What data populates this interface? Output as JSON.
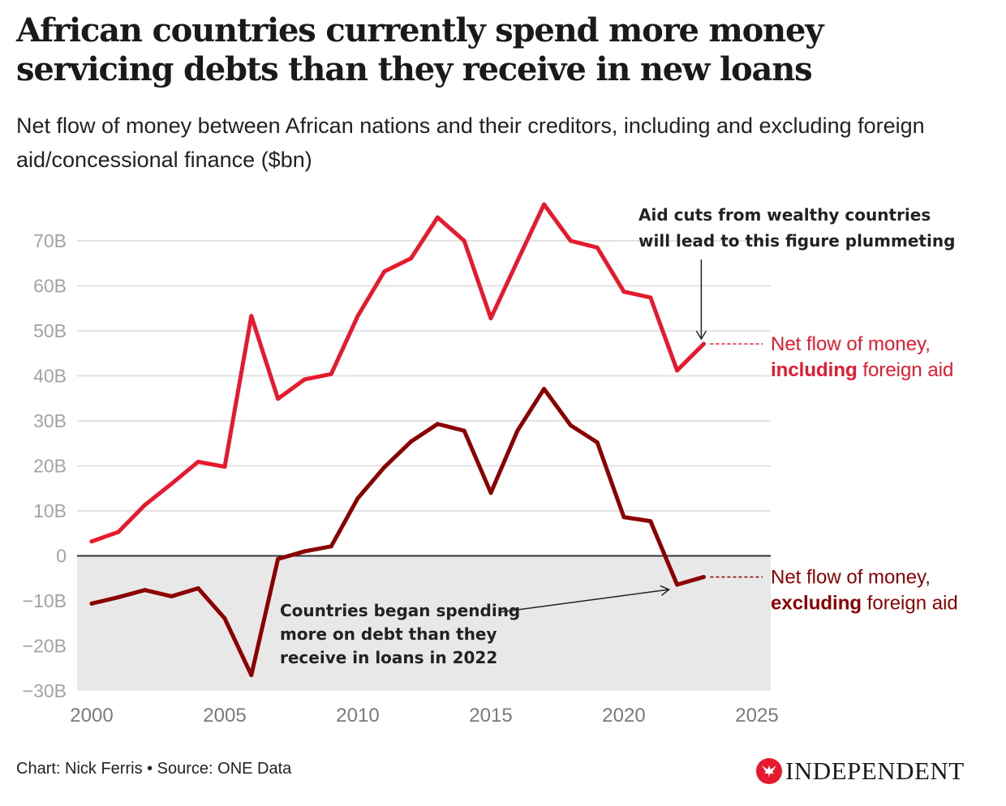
{
  "title": "African countries currently spend more money servicing debts than they receive in new loans",
  "subtitle": "Net flow of money between African nations and their creditors, including and excluding foreign aid/concessional finance ($bn)",
  "footer": {
    "credit": "Chart: Nick Ferris • Source: ONE Data",
    "brand": "INDEPENDENT",
    "brand_color": "#e8192c"
  },
  "chart_data": {
    "type": "line",
    "title": "African countries currently spend more money servicing debts than they receive in new loans",
    "subtitle": "Net flow of money between African nations and their creditors, including and excluding foreign aid/concessional finance ($bn)",
    "xlabel": "",
    "ylabel": "",
    "x": [
      2000,
      2001,
      2002,
      2003,
      2004,
      2005,
      2006,
      2007,
      2008,
      2009,
      2010,
      2011,
      2012,
      2013,
      2014,
      2015,
      2016,
      2017,
      2018,
      2019,
      2020,
      2021,
      2022,
      2023
    ],
    "xlim": [
      2000,
      2025
    ],
    "ylim": [
      -30,
      70
    ],
    "xticks": [
      2000,
      2005,
      2010,
      2015,
      2020,
      2025
    ],
    "xtick_labels": [
      "2000",
      "2005",
      "2010",
      "2015",
      "2020",
      "2025"
    ],
    "yticks": [
      -30,
      -20,
      -10,
      0,
      10,
      20,
      30,
      40,
      50,
      60,
      70
    ],
    "ytick_labels": [
      "−30B",
      "−20B",
      "−10B",
      "0",
      "10B",
      "20B",
      "30B",
      "40B",
      "50B",
      "60B",
      "70B"
    ],
    "grid": true,
    "negative_region_shaded": true,
    "series": [
      {
        "name": "Net flow of money, including foreign aid",
        "label_prefix": "Net flow of money,",
        "label_bold": "including",
        "label_suffix": " foreign aid",
        "color": "#e8192c",
        "values": [
          3.2,
          5.3,
          11.3,
          16.0,
          20.9,
          19.8,
          53.3,
          34.9,
          39.2,
          40.4,
          53.3,
          63.2,
          66.1,
          75.2,
          70.0,
          52.8,
          65.5,
          78.1,
          70.0,
          68.5,
          58.7,
          57.4,
          41.2,
          47.1
        ]
      },
      {
        "name": "Net flow of money, excluding foreign aid",
        "label_prefix": "Net flow of money,",
        "label_bold": "excluding",
        "label_suffix": " foreign aid",
        "color": "#8b0000",
        "values": [
          -10.6,
          -9.2,
          -7.6,
          -9.0,
          -7.2,
          -13.9,
          -26.5,
          -0.7,
          1.0,
          2.1,
          12.8,
          19.7,
          25.4,
          29.3,
          27.8,
          14.0,
          27.8,
          37.1,
          29.0,
          25.2,
          8.6,
          7.7,
          -6.4,
          -4.7
        ]
      }
    ],
    "annotations": [
      {
        "lines": [
          "Aid cuts from wealthy countries",
          "will lead to this figure plummeting"
        ],
        "target_series": 0,
        "target_x": 2023
      },
      {
        "lines": [
          "Countries began spending",
          "more on debt than they",
          "receive in loans in 2022"
        ],
        "target_series": 1,
        "target_x": 2022
      }
    ]
  }
}
